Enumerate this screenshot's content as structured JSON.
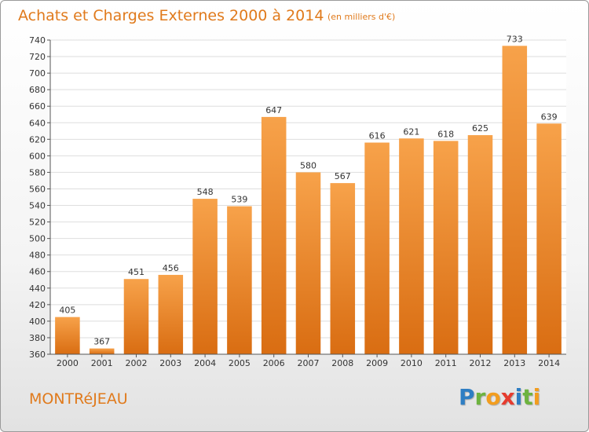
{
  "title": "Achats et Charges Externes 2000 à 2014",
  "subtitle": "(en milliers d'€)",
  "town": "MONTRéJEAU",
  "logo": {
    "letters": [
      "P",
      "r",
      "o",
      "x",
      "i",
      "t",
      "i"
    ],
    "colors": [
      "#2e7ec3",
      "#6db33f",
      "#f29d1f",
      "#e63c2f",
      "#2e7ec3",
      "#6db33f",
      "#f29d1f"
    ]
  },
  "colors": {
    "bar_top": "#f7a24a",
    "bar_bottom": "#d96d12",
    "title": "#e07a1c"
  },
  "chart_data": {
    "type": "bar",
    "title": "Achats et Charges Externes 2000 à 2014",
    "subtitle": "(en milliers d'€)",
    "categories": [
      "2000",
      "2001",
      "2002",
      "2003",
      "2004",
      "2005",
      "2006",
      "2007",
      "2008",
      "2009",
      "2010",
      "2011",
      "2012",
      "2013",
      "2014"
    ],
    "values": [
      405,
      367,
      451,
      456,
      548,
      539,
      647,
      580,
      567,
      616,
      621,
      618,
      625,
      733,
      639
    ],
    "ylim": [
      360,
      740
    ],
    "yticks": [
      360,
      380,
      400,
      420,
      440,
      460,
      480,
      500,
      520,
      540,
      560,
      580,
      600,
      620,
      640,
      660,
      680,
      700,
      720,
      740
    ],
    "grid": true,
    "legend": "none"
  }
}
